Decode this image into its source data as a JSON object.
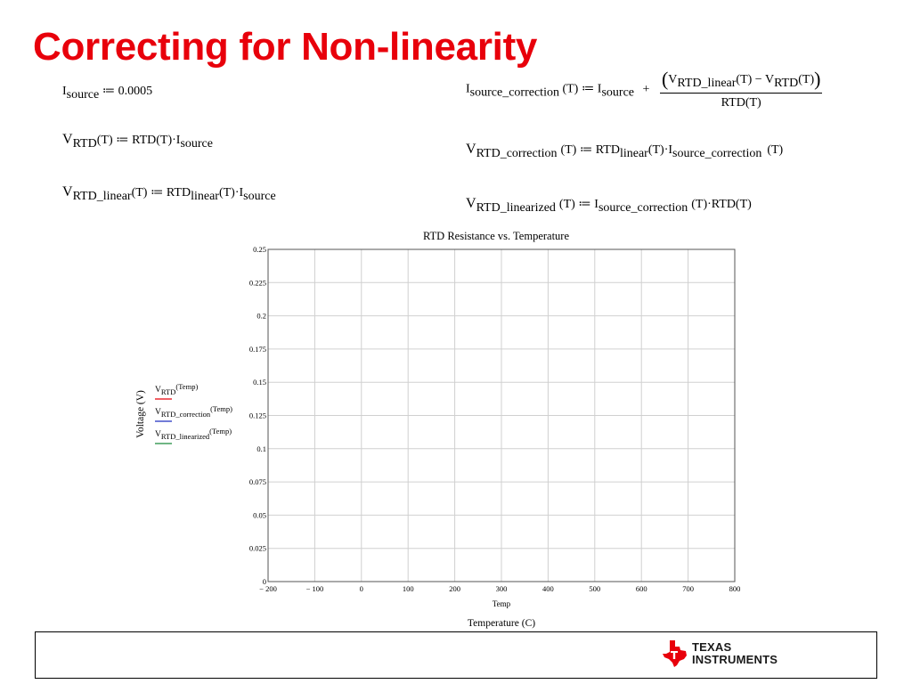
{
  "slide": {
    "title": "Correcting for Non-linearity"
  },
  "equations": {
    "i_source": {
      "base": "I",
      "sub": "source",
      "rhs": " ≔ 0.0005"
    },
    "v_rtd": {
      "base": "V",
      "sub": "RTD",
      "rhs": "(T) ≔ RTD(T)·I",
      "rhs_sub": "source"
    },
    "v_rtd_linear": {
      "base": "V",
      "sub": "RTD_linear",
      "mid": "(T) ≔ RTD",
      "mid_sub": "linear",
      "rhs": "(T)·I",
      "rhs_sub": "source"
    },
    "i_source_correction": {
      "base": "I",
      "sub": "source_correction",
      "mid": "(T) ≔ I",
      "mid_sub": "source",
      "plus": "+",
      "num_open": "(",
      "num_v1": "V",
      "num_v1_sub": "RTD_linear",
      "num_mid": "(T) − V",
      "num_v2_sub": "RTD",
      "num_end": "(T)",
      "num_close": ")",
      "den": "RTD(T)"
    },
    "v_rtd_correction": {
      "base": "V",
      "sub": "RTD_correction",
      "mid": "(T) ≔ RTD",
      "mid_sub": "linear",
      "rhs": "(T)·I",
      "rhs_sub": "source_correction",
      "end": "(T)"
    },
    "v_rtd_linearized": {
      "base": "V",
      "sub": "RTD_linearized",
      "mid": "(T) ≔ I",
      "mid_sub": "source_correction",
      "rhs": "(T)·RTD(T)"
    }
  },
  "chart_data": {
    "type": "line",
    "title": "RTD Resistance vs. Temperature",
    "xlabel": "Temperature (C)",
    "xvar": "Temp",
    "ylabel": "Voltage (V)",
    "xlim": [
      -200,
      800
    ],
    "ylim": [
      0,
      0.25
    ],
    "grid": true,
    "legend_position": "left",
    "x_ticks": [
      "− 200",
      "− 100",
      "0",
      "100",
      "200",
      "300",
      "400",
      "500",
      "600",
      "700",
      "800"
    ],
    "y_ticks": [
      "0",
      "0.025",
      "0.05",
      "0.075",
      "0.1",
      "0.125",
      "0.15",
      "0.175",
      "0.2",
      "0.225",
      "0.25"
    ],
    "series": [
      {
        "base": "V",
        "sub": "RTD",
        "arg": "(Temp)",
        "color": "#e8000b",
        "values": []
      },
      {
        "base": "V",
        "sub": "RTD_correction",
        "arg": "(Temp)",
        "color": "#1f2fbf",
        "values": []
      },
      {
        "base": "V",
        "sub": "RTD_linearized",
        "arg": "(Temp)",
        "color": "#1b8a3a",
        "values": []
      }
    ]
  },
  "footer": {
    "logo_line1": "Texas",
    "logo_line2": "Instruments",
    "logo_color": "#e8000b"
  }
}
